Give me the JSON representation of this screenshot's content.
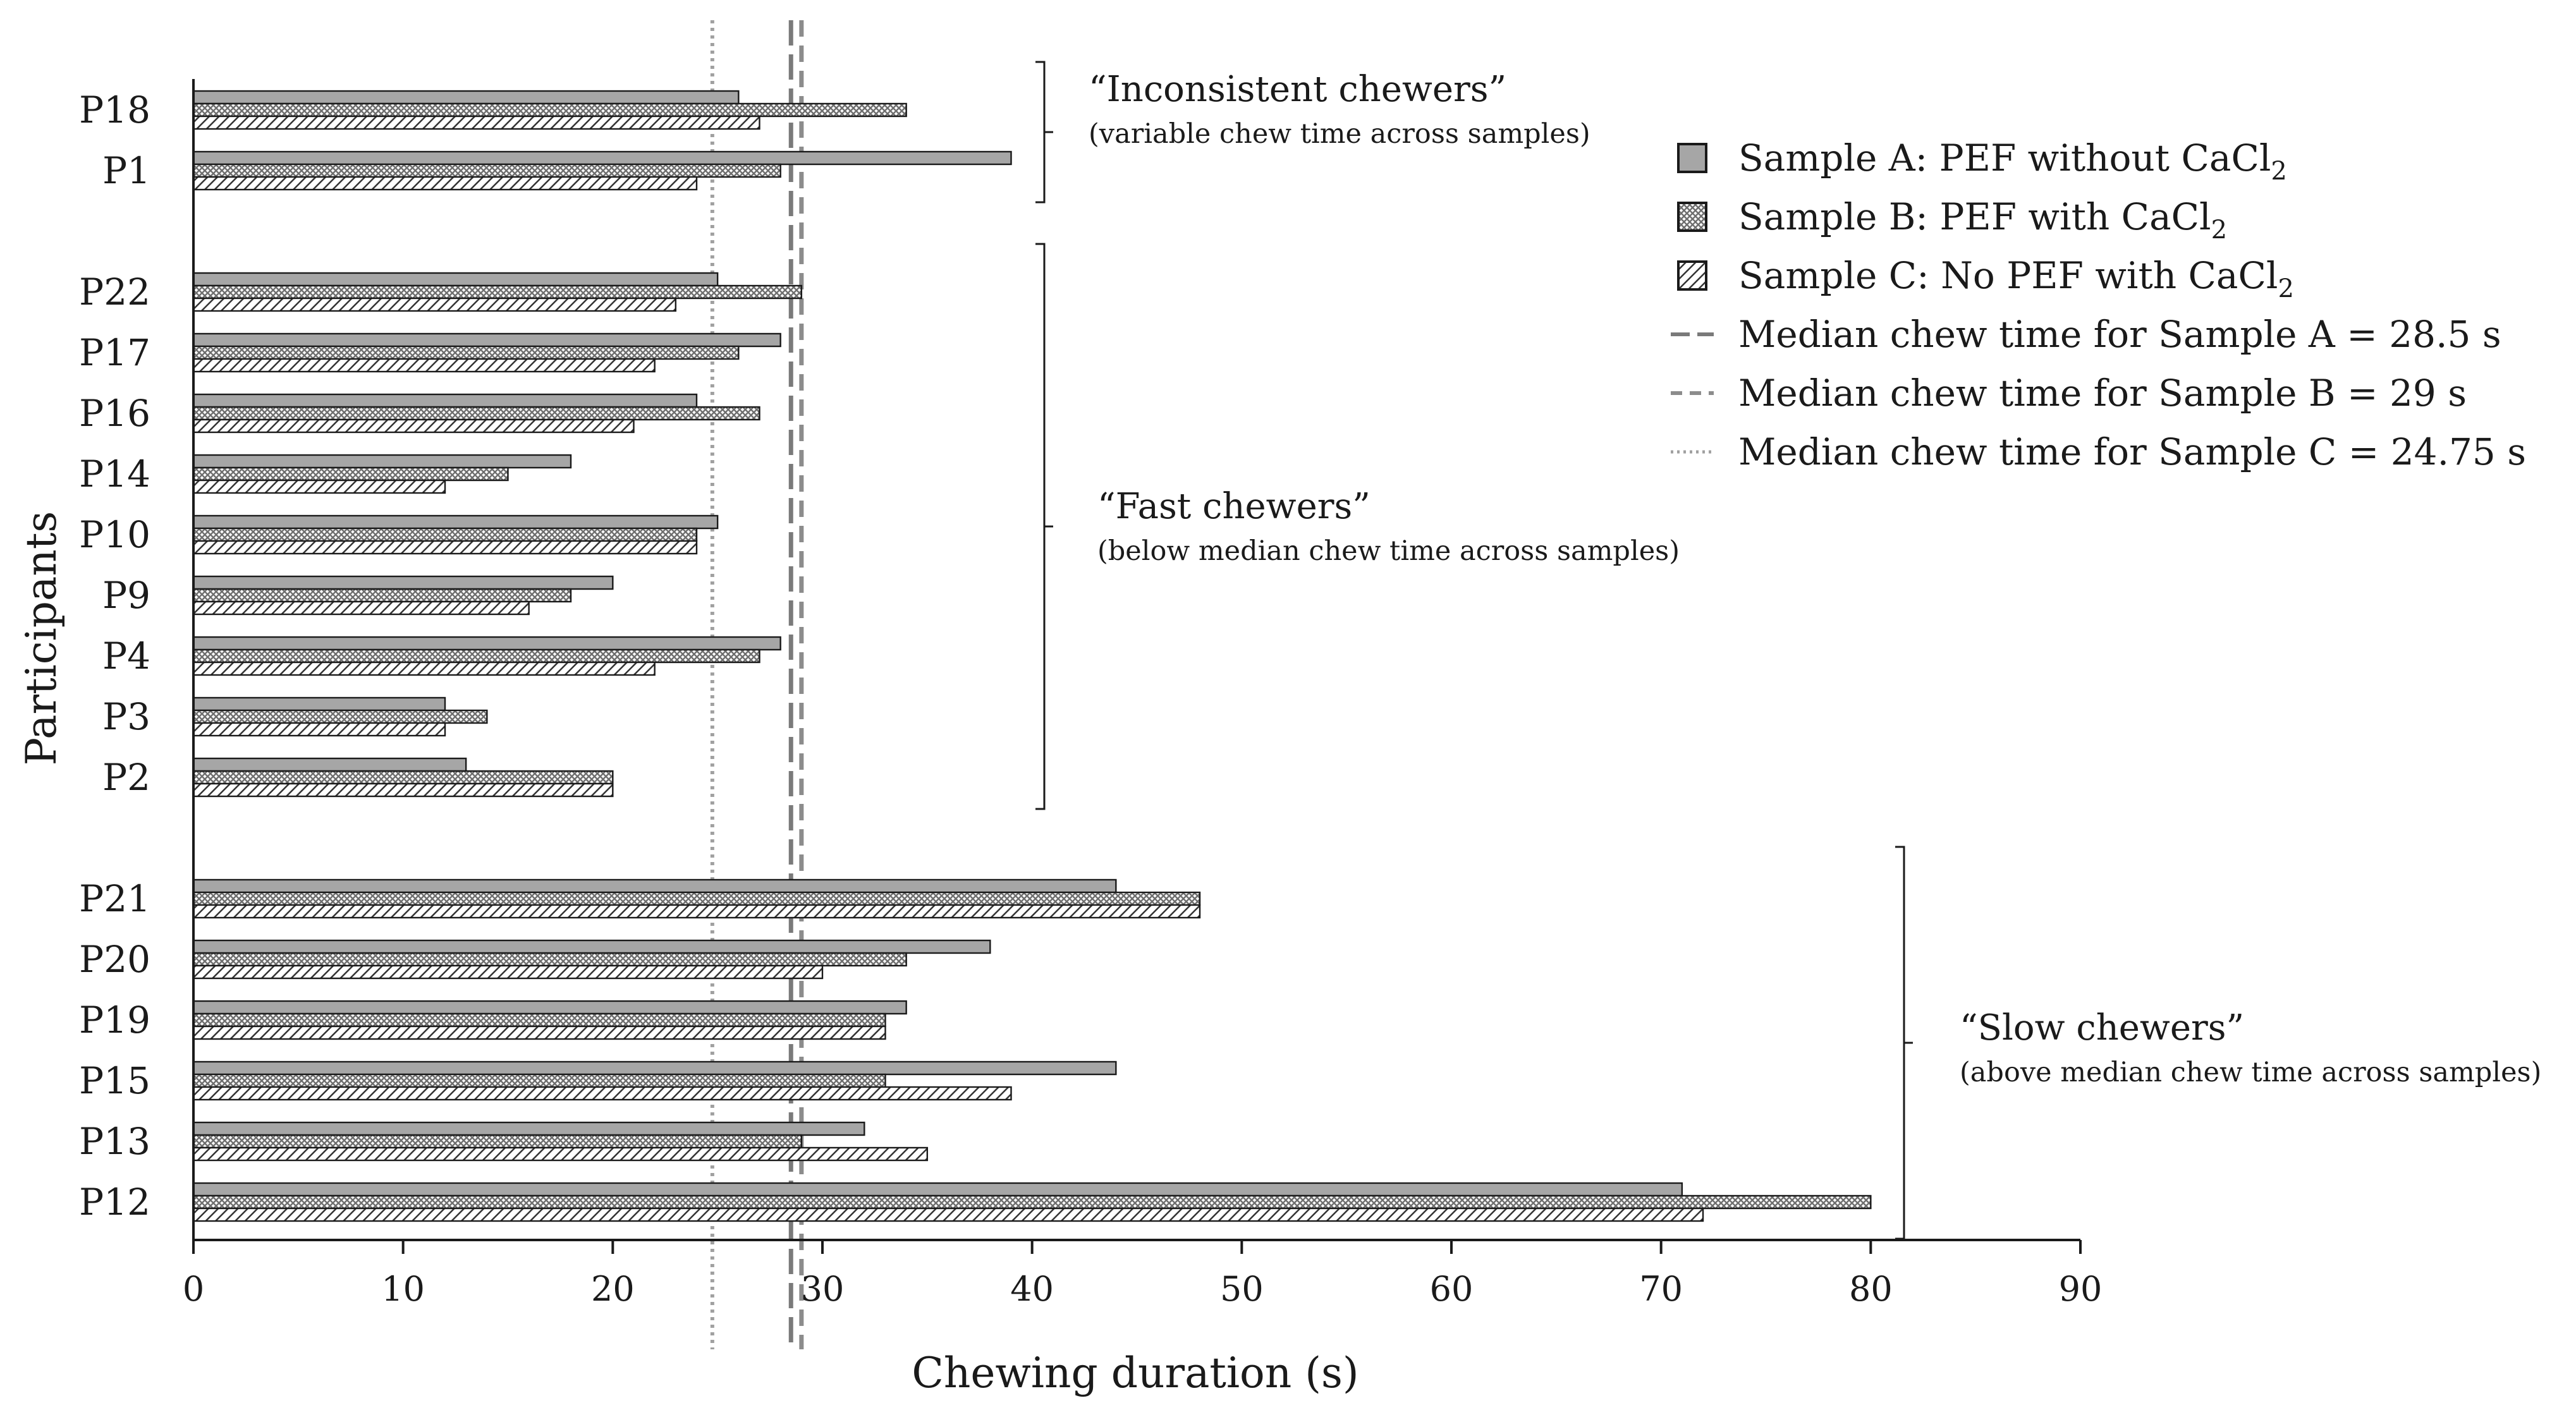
{
  "chart_data": {
    "type": "bar",
    "orientation": "horizontal",
    "xlabel": "Chewing duration (s)",
    "ylabel": "Participants",
    "xlim": [
      0,
      90
    ],
    "xticks": [
      "0",
      "10",
      "20",
      "30",
      "40",
      "50",
      "60",
      "70",
      "80",
      "90"
    ],
    "series": [
      {
        "name": "Sample A: PEF without CaCl",
        "subscript": "2",
        "pattern": "solid"
      },
      {
        "name": "Sample B: PEF with CaCl",
        "subscript": "2",
        "pattern": "crosshatch"
      },
      {
        "name": "Sample C: No PEF with CaCl",
        "subscript": "2",
        "pattern": "diagonal"
      }
    ],
    "medians": [
      {
        "label": "Median chew time for Sample A = 28.5 s",
        "value": 28.5,
        "style": "long-dash"
      },
      {
        "label": "Median chew time for Sample B = 29 s",
        "value": 29,
        "style": "dash"
      },
      {
        "label": "Median chew time for Sample C = 24.75 s",
        "value": 24.75,
        "style": "dotted"
      }
    ],
    "groups": [
      {
        "title": "“Inconsistent chewers”",
        "subtitle": "(variable chew time across samples)",
        "participants": [
          {
            "label": "P18",
            "values": [
              26,
              34,
              27
            ]
          },
          {
            "label": "P1",
            "values": [
              39,
              28,
              24
            ]
          }
        ]
      },
      {
        "title": "“Fast chewers”",
        "subtitle": "(below median chew time across samples)",
        "participants": [
          {
            "label": "P22",
            "values": [
              25,
              29,
              23
            ]
          },
          {
            "label": "P17",
            "values": [
              28,
              26,
              22
            ]
          },
          {
            "label": "P16",
            "values": [
              24,
              27,
              21
            ]
          },
          {
            "label": "P14",
            "values": [
              18,
              15,
              12
            ]
          },
          {
            "label": "P10",
            "values": [
              25,
              24,
              24
            ]
          },
          {
            "label": "P9",
            "values": [
              20,
              18,
              16
            ]
          },
          {
            "label": "P4",
            "values": [
              28,
              27,
              22
            ]
          },
          {
            "label": "P3",
            "values": [
              12,
              14,
              12
            ]
          },
          {
            "label": "P2",
            "values": [
              13,
              20,
              20
            ]
          }
        ]
      },
      {
        "title": "“Slow chewers”",
        "subtitle": "(above median chew time across samples)",
        "participants": [
          {
            "label": "P21",
            "values": [
              44,
              48,
              48
            ]
          },
          {
            "label": "P20",
            "values": [
              38,
              34,
              30
            ]
          },
          {
            "label": "P19",
            "values": [
              34,
              33,
              33
            ]
          },
          {
            "label": "P15",
            "values": [
              44,
              33,
              39
            ]
          },
          {
            "label": "P13",
            "values": [
              32,
              29,
              35
            ]
          },
          {
            "label": "P12",
            "values": [
              71,
              80,
              72
            ]
          }
        ]
      }
    ]
  },
  "colors": {
    "bar_solid": "#a6a6a6",
    "bar_pattern": "#707070",
    "median_a": "#7a7a7a",
    "median_b": "#8c8c8c",
    "median_c": "#a0a0a0",
    "axis": "#1a1a1a"
  }
}
